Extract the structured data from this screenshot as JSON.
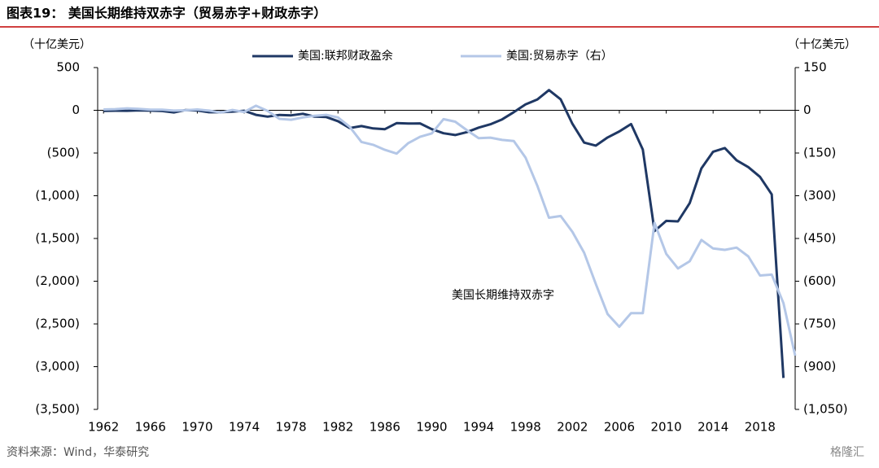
{
  "chart_data": {
    "type": "line",
    "title": "图表19： 美国长期维持双赤字（贸易赤字+财政赤字）",
    "y_label": "（十亿美元）",
    "y2_label": "（十亿美元）",
    "annotation": "美国长期维持双赤字",
    "source": "资料来源：Wind，华泰研究",
    "watermark": "格隆汇",
    "x": [
      1962,
      1963,
      1964,
      1965,
      1966,
      1967,
      1968,
      1969,
      1970,
      1971,
      1972,
      1973,
      1974,
      1975,
      1976,
      1977,
      1978,
      1979,
      1980,
      1981,
      1982,
      1983,
      1984,
      1985,
      1986,
      1987,
      1988,
      1989,
      1990,
      1991,
      1992,
      1993,
      1994,
      1995,
      1996,
      1997,
      1998,
      1999,
      2000,
      2001,
      2002,
      2003,
      2004,
      2005,
      2006,
      2007,
      2008,
      2009,
      2010,
      2011,
      2012,
      2013,
      2014,
      2015,
      2016,
      2017,
      2018,
      2019,
      2020,
      2021
    ],
    "xlim": [
      1961.5,
      2021
    ],
    "xticks": [
      1962,
      1966,
      1970,
      1974,
      1978,
      1982,
      1986,
      1990,
      1994,
      1998,
      2002,
      2006,
      2010,
      2014,
      2018
    ],
    "series": [
      {
        "name": "美国:联邦财政盈余",
        "color": "#1f3864",
        "axis": "y",
        "values": [
          -7,
          -5,
          -6,
          -1,
          -4,
          -9,
          -25,
          3,
          -3,
          -23,
          -23,
          -15,
          -6,
          -53,
          -74,
          -54,
          -59,
          -41,
          -74,
          -79,
          -128,
          -208,
          -185,
          -212,
          -221,
          -150,
          -155,
          -153,
          -221,
          -269,
          -290,
          -255,
          -203,
          -164,
          -107,
          -22,
          69,
          126,
          236,
          128,
          -158,
          -378,
          -413,
          -318,
          -248,
          -161,
          -459,
          -1413,
          -1294,
          -1300,
          -1087,
          -680,
          -485,
          -442,
          -585,
          -665,
          -779,
          -984,
          -3132,
          null
        ]
      },
      {
        "name": "美国:贸易赤字（右）",
        "color": "#b4c7e7",
        "axis": "y2",
        "values": [
          3,
          4,
          7,
          5,
          2,
          2,
          -1,
          0,
          3,
          -1,
          -8,
          1,
          -6,
          16,
          -2,
          -30,
          -33,
          -25,
          -19,
          -16,
          -25,
          -58,
          -111,
          -121,
          -139,
          -152,
          -115,
          -93,
          -81,
          -31,
          -40,
          -70,
          -98,
          -96,
          -104,
          -108,
          -166,
          -264,
          -377,
          -371,
          -427,
          -500,
          -610,
          -715,
          -760,
          -712,
          -712,
          -395,
          -504,
          -555,
          -530,
          -455,
          -485,
          -490,
          -482,
          -513,
          -580,
          -577,
          -677,
          -861
        ]
      }
    ],
    "ylim": [
      -3500,
      500
    ],
    "yticks": [
      500,
      0,
      {
        "value": -500,
        "label": "(500)"
      },
      {
        "value": -1000,
        "label": "(1,000)"
      },
      {
        "value": -1500,
        "label": "(1,500)"
      },
      {
        "value": -2000,
        "label": "(2,000)"
      },
      {
        "value": -2500,
        "label": "(2,500)"
      },
      {
        "value": -3000,
        "label": "(3,000)"
      },
      {
        "value": -3500,
        "label": "(3,500)"
      }
    ],
    "y2lim": [
      -1050,
      150
    ],
    "y2ticks": [
      150,
      0,
      {
        "value": -150,
        "label": "(150)"
      },
      {
        "value": -300,
        "label": "(300)"
      },
      {
        "value": -450,
        "label": "(450)"
      },
      {
        "value": -600,
        "label": "(600)"
      },
      {
        "value": -750,
        "label": "(750)"
      },
      {
        "value": -900,
        "label": "(900)"
      },
      {
        "value": -1050,
        "label": "(1,050)"
      }
    ],
    "legend": "top"
  }
}
